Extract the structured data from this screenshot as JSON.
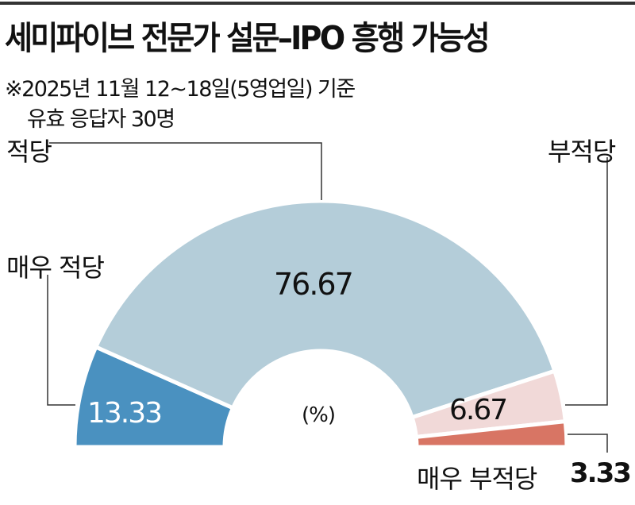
{
  "title": "세미파이브 전문가 설문–IPO 흥행 가능성",
  "notes": [
    "※2025년 11월 12~18일(5영업일) 기준",
    "유효 응답자 30명"
  ],
  "chart_data": {
    "type": "pie",
    "variant": "half-donut",
    "unit": "(%)",
    "categories": [
      "매우 적당",
      "적당",
      "부적당",
      "매우 부적당"
    ],
    "values": [
      13.33,
      76.67,
      6.67,
      3.33
    ],
    "value_labels": [
      "13.33",
      "76.67",
      "6.67",
      "3.33"
    ],
    "colors": [
      "#4a91c0",
      "#b4cdd9",
      "#f1d9d8",
      "#d87564"
    ],
    "legend": "leader-line labels"
  }
}
